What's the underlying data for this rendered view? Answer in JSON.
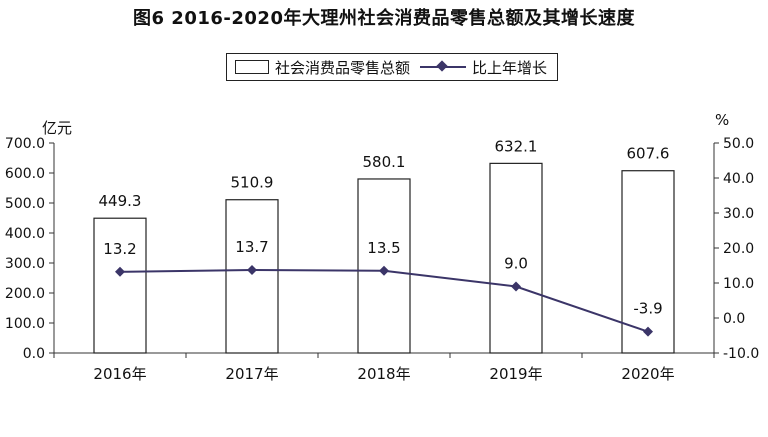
{
  "title": "图6   2016-2020年大理州社会消费品零售总额及其增长速度",
  "legend": {
    "bar_label": "社会消费品零售总额",
    "line_label": "比上年增长"
  },
  "colors": {
    "line": "#3b3568",
    "bar_fill": "#ffffff",
    "bar_stroke": "#222222",
    "axis": "#333333"
  },
  "chart_data": {
    "type": "bar+line",
    "title": "图6   2016-2020年大理州社会消费品零售总额及其增长速度",
    "categories": [
      "2016年",
      "2017年",
      "2018年",
      "2019年",
      "2020年"
    ],
    "series": [
      {
        "name": "社会消费品零售总额",
        "type": "bar",
        "axis": "left",
        "values": [
          449.3,
          510.9,
          580.1,
          632.1,
          607.6
        ]
      },
      {
        "name": "比上年增长",
        "type": "line",
        "axis": "right",
        "values": [
          13.2,
          13.7,
          13.5,
          9.0,
          -3.9
        ]
      }
    ],
    "y_left": {
      "unit": "亿元",
      "min": 0,
      "max": 700,
      "ticks": [
        "0.0",
        "100.0",
        "200.0",
        "300.0",
        "400.0",
        "500.0",
        "600.0",
        "700.0"
      ]
    },
    "y_right": {
      "unit": "%",
      "min": -10,
      "max": 50,
      "ticks": [
        "-10.0",
        "0.0",
        "10.0",
        "20.0",
        "30.0",
        "40.0",
        "50.0"
      ]
    },
    "bar_labels": [
      "449.3",
      "510.9",
      "580.1",
      "632.1",
      "607.6"
    ],
    "line_labels": [
      "13.2",
      "13.7",
      "13.5",
      "9.0",
      "-3.9"
    ],
    "grid": false,
    "legend_position": "top-center"
  }
}
